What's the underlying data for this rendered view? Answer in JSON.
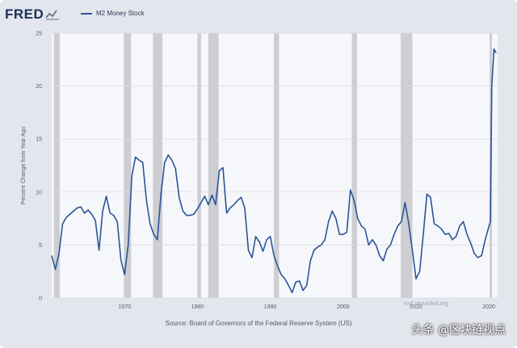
{
  "header": {
    "logo_text": "FRED",
    "logo_icon": "chart-line-icon",
    "legend_label": "M2 Money Stock"
  },
  "footer": {
    "source": "Source: Board of Governors of the Federal Reserve System (US)",
    "watermark": "头条 @区块链视点",
    "overlay_text": "myf.stlouisfed.org"
  },
  "colors": {
    "background": "#e4e6ee",
    "plot_bg": "#f6f7fa",
    "line": "#2a5599",
    "recession": "#cdcdd2"
  },
  "chart_data": {
    "type": "line",
    "title": "M2 Money Stock",
    "xlabel": "",
    "ylabel": "Percent Change from Year Ago",
    "xlim": [
      1960,
      2021.2
    ],
    "ylim": [
      0,
      25
    ],
    "yticks": [
      0,
      5,
      10,
      15,
      20,
      25
    ],
    "xticks": [
      1970,
      1980,
      1990,
      2000,
      2010,
      2020
    ],
    "grid": "horizontal",
    "legend": "top-left",
    "recessions": [
      [
        1960.3,
        1961.1
      ],
      [
        1969.9,
        1970.9
      ],
      [
        1973.9,
        1975.2
      ],
      [
        1980.0,
        1980.5
      ],
      [
        1981.5,
        1982.9
      ],
      [
        1990.5,
        1991.2
      ],
      [
        2001.2,
        2001.9
      ],
      [
        2007.9,
        2009.5
      ],
      [
        2020.1,
        2020.4
      ]
    ],
    "series": [
      {
        "name": "M2 Money Stock",
        "x": [
          1960.0,
          1960.5,
          1961.0,
          1961.5,
          1962.0,
          1962.5,
          1963.0,
          1963.5,
          1964.0,
          1964.5,
          1965.0,
          1965.5,
          1966.0,
          1966.5,
          1967.0,
          1967.5,
          1968.0,
          1968.5,
          1969.0,
          1969.5,
          1970.0,
          1970.5,
          1971.0,
          1971.5,
          1972.0,
          1972.5,
          1973.0,
          1973.5,
          1974.0,
          1974.5,
          1975.0,
          1975.5,
          1976.0,
          1976.5,
          1977.0,
          1977.5,
          1978.0,
          1978.5,
          1979.0,
          1979.5,
          1980.0,
          1980.5,
          1981.0,
          1981.5,
          1982.0,
          1982.5,
          1983.0,
          1983.5,
          1984.0,
          1984.5,
          1985.0,
          1985.5,
          1986.0,
          1986.5,
          1987.0,
          1987.5,
          1988.0,
          1988.5,
          1989.0,
          1989.5,
          1990.0,
          1990.5,
          1991.0,
          1991.5,
          1992.0,
          1992.5,
          1993.0,
          1993.5,
          1994.0,
          1994.5,
          1995.0,
          1995.5,
          1996.0,
          1996.5,
          1997.0,
          1997.5,
          1998.0,
          1998.5,
          1999.0,
          1999.5,
          2000.0,
          2000.5,
          2001.0,
          2001.5,
          2002.0,
          2002.5,
          2003.0,
          2003.5,
          2004.0,
          2004.5,
          2005.0,
          2005.5,
          2006.0,
          2006.5,
          2007.0,
          2007.5,
          2008.0,
          2008.5,
          2009.0,
          2009.5,
          2010.0,
          2010.5,
          2011.0,
          2011.5,
          2012.0,
          2012.5,
          2013.0,
          2013.5,
          2014.0,
          2014.5,
          2015.0,
          2015.5,
          2016.0,
          2016.5,
          2017.0,
          2017.5,
          2018.0,
          2018.5,
          2019.0,
          2019.5,
          2019.9,
          2020.2,
          2020.4,
          2020.7,
          2021.0
        ],
        "values": [
          4.0,
          2.7,
          4.2,
          7.0,
          7.6,
          7.9,
          8.2,
          8.5,
          8.6,
          8.0,
          8.3,
          7.9,
          7.3,
          4.5,
          8.2,
          9.6,
          8.0,
          7.8,
          7.2,
          3.6,
          2.2,
          5.0,
          11.5,
          13.3,
          13.0,
          12.8,
          9.2,
          7.0,
          6.0,
          5.5,
          9.8,
          12.8,
          13.5,
          13.0,
          12.2,
          9.5,
          8.2,
          7.8,
          7.8,
          7.9,
          8.4,
          9.0,
          9.6,
          8.8,
          9.7,
          8.8,
          12.0,
          12.3,
          8.0,
          8.5,
          8.8,
          9.2,
          9.5,
          8.5,
          4.5,
          3.8,
          5.8,
          5.3,
          4.4,
          5.5,
          5.8,
          4.0,
          3.0,
          2.2,
          1.8,
          1.2,
          0.5,
          1.5,
          1.6,
          0.7,
          1.2,
          3.5,
          4.5,
          4.8,
          5.0,
          5.5,
          7.2,
          8.2,
          7.5,
          6.0,
          6.0,
          6.2,
          10.2,
          9.2,
          7.5,
          6.8,
          6.5,
          5.0,
          5.5,
          5.0,
          4.0,
          3.5,
          4.6,
          5.0,
          6.0,
          6.8,
          7.2,
          9.0,
          7.0,
          4.5,
          1.8,
          2.5,
          6.0,
          9.8,
          9.5,
          7.0,
          6.8,
          6.5,
          6.0,
          6.1,
          5.5,
          5.8,
          6.8,
          7.2,
          6.0,
          5.2,
          4.2,
          3.8,
          4.0,
          5.5,
          6.5,
          7.2,
          20.0,
          23.5,
          23.1
        ]
      }
    ]
  }
}
